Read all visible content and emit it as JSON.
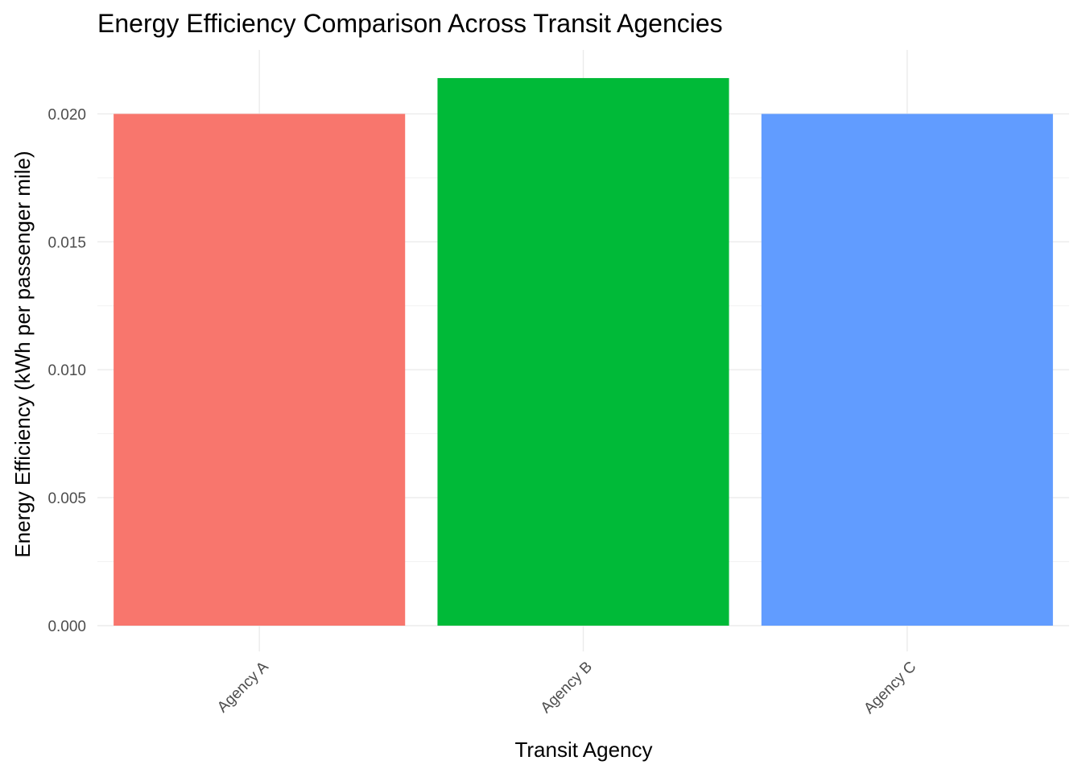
{
  "chart_data": {
    "type": "bar",
    "title": "Energy Efficiency Comparison Across Transit Agencies",
    "xlabel": "Transit Agency",
    "ylabel": "Energy Efficiency (kWh per passenger mile)",
    "categories": [
      "Agency A",
      "Agency B",
      "Agency C"
    ],
    "values": [
      0.02,
      0.0214,
      0.02
    ],
    "colors": [
      "#F8766D",
      "#00BA38",
      "#619CFF"
    ],
    "ylim": [
      0,
      0.0225
    ],
    "y_ticks": [
      0.0,
      0.005,
      0.01,
      0.015,
      0.02
    ],
    "y_tick_labels": [
      "0.000",
      "0.005",
      "0.010",
      "0.015",
      "0.020"
    ],
    "grid": true,
    "legend": "none"
  }
}
